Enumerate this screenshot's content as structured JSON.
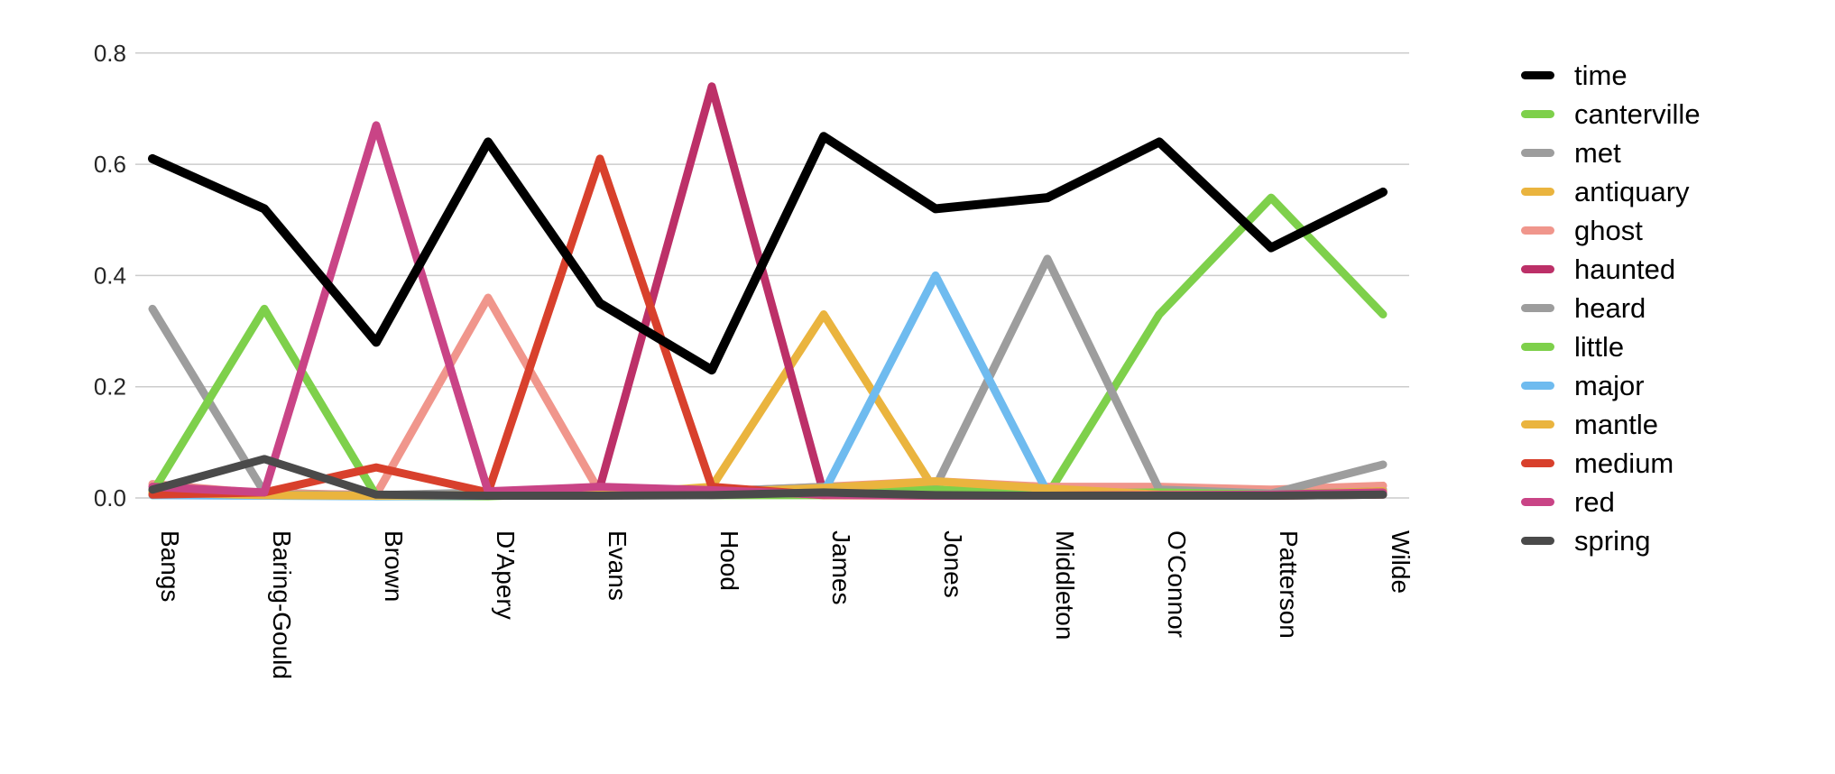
{
  "chart_data": {
    "type": "line",
    "title": "",
    "xlabel": "",
    "ylabel": "",
    "ylim": [
      0,
      0.8
    ],
    "grid": "horizontal",
    "legend_position": "right",
    "categories": [
      "Bangs",
      "Baring-Gould",
      "Brown",
      "D'Apery",
      "Evans",
      "Hood",
      "James",
      "Jones",
      "Middleton",
      "O'Connor",
      "Patterson",
      "Wilde"
    ],
    "y_ticks": [
      {
        "label": "0.8",
        "value": 0.8
      },
      {
        "label": "0.6",
        "value": 0.6
      },
      {
        "label": "0.4",
        "value": 0.4
      },
      {
        "label": "0.2",
        "value": 0.2
      },
      {
        "label": "0.0",
        "value": 0.0
      }
    ],
    "series": [
      {
        "name": "time",
        "color": "#000000",
        "values": [
          0.61,
          0.52,
          0.28,
          0.64,
          0.35,
          0.23,
          0.65,
          0.52,
          0.54,
          0.64,
          0.45,
          0.55
        ]
      },
      {
        "name": "canterville",
        "color": "#7ed04b",
        "values": [
          0.005,
          0.01,
          0.003,
          0.003,
          0.01,
          0.005,
          0.005,
          0.012,
          0.005,
          0.33,
          0.54,
          0.33
        ]
      },
      {
        "name": "met",
        "color": "#9d9d9d",
        "values": [
          0.34,
          0.01,
          0.004,
          0.005,
          0.006,
          0.01,
          0.015,
          0.01,
          0.012,
          0.01,
          0.01,
          0.015
        ]
      },
      {
        "name": "antiquary",
        "color": "#eab43e",
        "values": [
          0.012,
          0.006,
          0.004,
          0.01,
          0.006,
          0.02,
          0.33,
          0.012,
          0.008,
          0.006,
          0.005,
          0.01
        ]
      },
      {
        "name": "ghost",
        "color": "#f0968c",
        "values": [
          0.025,
          0.008,
          0.006,
          0.36,
          0.01,
          0.012,
          0.02,
          0.03,
          0.02,
          0.02,
          0.015,
          0.022
        ]
      },
      {
        "name": "haunted",
        "color": "#bc3068",
        "values": [
          0.01,
          0.006,
          0.004,
          0.006,
          0.02,
          0.74,
          0.008,
          0.004,
          0.004,
          0.005,
          0.006,
          0.01
        ]
      },
      {
        "name": "heard",
        "color": "#9d9d9d",
        "values": [
          0.012,
          0.006,
          0.005,
          0.01,
          0.01,
          0.012,
          0.02,
          0.02,
          0.43,
          0.015,
          0.008,
          0.06
        ]
      },
      {
        "name": "little",
        "color": "#7ed04b",
        "values": [
          0.01,
          0.34,
          0.004,
          0.004,
          0.015,
          0.01,
          0.008,
          0.015,
          0.008,
          0.01,
          0.006,
          0.012
        ]
      },
      {
        "name": "major",
        "color": "#6fbbef",
        "values": [
          0.005,
          0.004,
          0.003,
          0.004,
          0.005,
          0.006,
          0.01,
          0.4,
          0.01,
          0.005,
          0.004,
          0.006
        ]
      },
      {
        "name": "mantle",
        "color": "#eab43e",
        "values": [
          0.01,
          0.005,
          0.004,
          0.005,
          0.01,
          0.01,
          0.018,
          0.03,
          0.017,
          0.006,
          0.005,
          0.012
        ]
      },
      {
        "name": "medium",
        "color": "#d8402c",
        "values": [
          0.006,
          0.01,
          0.055,
          0.01,
          0.61,
          0.02,
          0.005,
          0.004,
          0.004,
          0.005,
          0.004,
          0.006
        ]
      },
      {
        "name": "red",
        "color": "#c94486",
        "values": [
          0.02,
          0.01,
          0.67,
          0.012,
          0.02,
          0.014,
          0.006,
          0.004,
          0.004,
          0.005,
          0.006,
          0.01
        ]
      },
      {
        "name": "spring",
        "color": "#4a4a4a",
        "values": [
          0.015,
          0.07,
          0.006,
          0.004,
          0.004,
          0.005,
          0.01,
          0.005,
          0.004,
          0.004,
          0.004,
          0.006
        ]
      }
    ]
  }
}
